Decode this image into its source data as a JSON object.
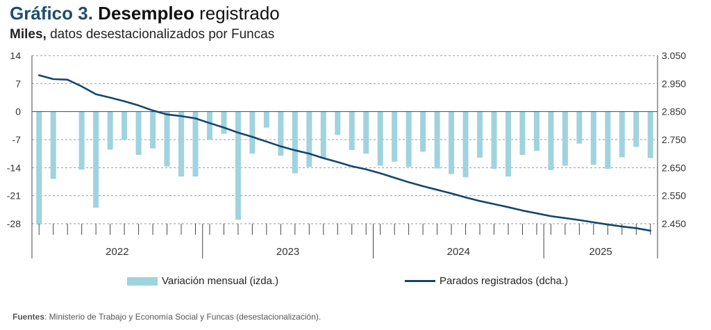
{
  "header": {
    "title_prefix": "Gráfico 3.",
    "title_main": "Desempleo",
    "title_rest": "registrado",
    "subtitle_bold": "Miles,",
    "subtitle_rest": "datos desestacionalizados por Funcas"
  },
  "footer": {
    "source_label": "Fuentes",
    "source_text": ": Ministerio de Trabajo y Economía Social y Funcas (desestacionalización)."
  },
  "colors": {
    "bar": "#9fd3df",
    "line": "#14466a",
    "grid": "#9a9a9a",
    "axis": "#444444"
  },
  "chart_data": {
    "type": "bar+line",
    "x_groups": [
      "2022",
      "2023",
      "2024",
      "2025"
    ],
    "x_months": [
      "2022-01",
      "2022-02",
      "2022-03",
      "2022-04",
      "2022-05",
      "2022-06",
      "2022-07",
      "2022-08",
      "2022-09",
      "2022-10",
      "2022-11",
      "2022-12",
      "2023-01",
      "2023-02",
      "2023-03",
      "2023-04",
      "2023-05",
      "2023-06",
      "2023-07",
      "2023-08",
      "2023-09",
      "2023-10",
      "2023-11",
      "2023-12",
      "2024-01",
      "2024-02",
      "2024-03",
      "2024-04",
      "2024-05",
      "2024-06",
      "2024-07",
      "2024-08",
      "2024-09",
      "2024-10",
      "2024-11",
      "2024-12",
      "2025-01",
      "2025-02",
      "2025-03",
      "2025-04",
      "2025-05",
      "2025-06",
      "2025-07",
      "2025-08"
    ],
    "y_left": {
      "min": -28,
      "max": 14,
      "ticks": [
        "14",
        "7",
        "0",
        "-7",
        "-14",
        "-21",
        "-28"
      ]
    },
    "y_right": {
      "min": 2450,
      "max": 3050,
      "ticks": [
        "3.050",
        "2.950",
        "2.850",
        "2.750",
        "2.650",
        "2.550",
        "2.450"
      ]
    },
    "grid": true,
    "legend_position": "bottom",
    "series": [
      {
        "name": "Variación mensual (izda.)",
        "type": "bar",
        "axis": "left",
        "values": [
          -28.2,
          -16.8,
          0,
          -14.5,
          -24,
          -9.5,
          -7,
          -10.8,
          -9.2,
          -13.7,
          -16.2,
          -16.2,
          -7,
          -5.5,
          -27,
          -10.5,
          -4,
          -11,
          -15.4,
          -13.8,
          -11.6,
          -5.8,
          -9.6,
          -10.5,
          -13.5,
          -12.5,
          -13.8,
          -10,
          -14.2,
          -15.6,
          -16.4,
          -11.5,
          -14.3,
          -16.2,
          -10.8,
          -9.8,
          -14.6,
          -13.5,
          -8,
          -13.3,
          -14.3,
          -11.4,
          -8.8,
          -11.6
        ]
      },
      {
        "name": "Parados registrados (dcha.)",
        "type": "line",
        "axis": "right",
        "values": [
          2980,
          2966,
          2964,
          2940,
          2912,
          2900,
          2887,
          2872,
          2854,
          2840,
          2834,
          2826,
          2809,
          2793,
          2775,
          2760,
          2743,
          2726,
          2712,
          2700,
          2684,
          2670,
          2655,
          2644,
          2630,
          2614,
          2598,
          2584,
          2571,
          2558,
          2544,
          2531,
          2520,
          2509,
          2497,
          2487,
          2477,
          2470,
          2463,
          2455,
          2447,
          2440,
          2434,
          2425
        ]
      }
    ]
  }
}
